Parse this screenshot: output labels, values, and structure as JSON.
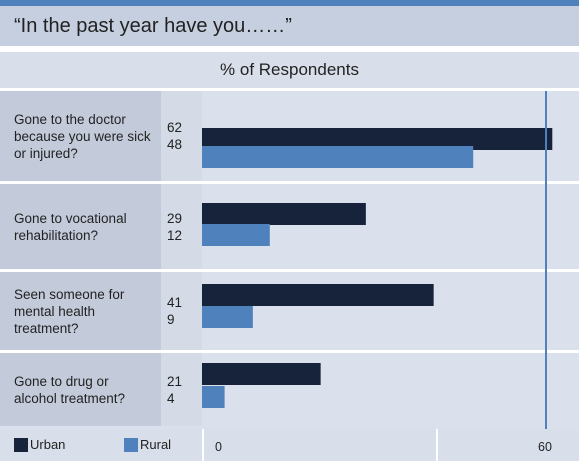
{
  "title": "“In the past year have you……”",
  "header": "% of Respondents",
  "legend": {
    "urban_label": "Urban",
    "rural_label": "Rural",
    "urban_color": "#17223b",
    "rural_color": "#4f81bd"
  },
  "chart_data": {
    "type": "bar",
    "orientation": "horizontal",
    "categories": [
      "Gone to the doctor because you were sick or injured?",
      "Gone to vocational rehabilitation?",
      "Seen someone for mental health treatment?",
      "Gone to drug or alcohol treatment?"
    ],
    "series": [
      {
        "name": "Urban",
        "values": [
          62,
          29,
          41,
          21
        ],
        "color": "#17223b"
      },
      {
        "name": "Rural",
        "values": [
          48,
          12,
          9,
          4
        ],
        "color": "#4f81bd"
      }
    ],
    "xlim": [
      0,
      64
    ],
    "xticks": [
      "0",
      "60"
    ],
    "reference_line": 60,
    "xlabel": "",
    "ylabel": "",
    "legend_position": "bottom-left"
  }
}
